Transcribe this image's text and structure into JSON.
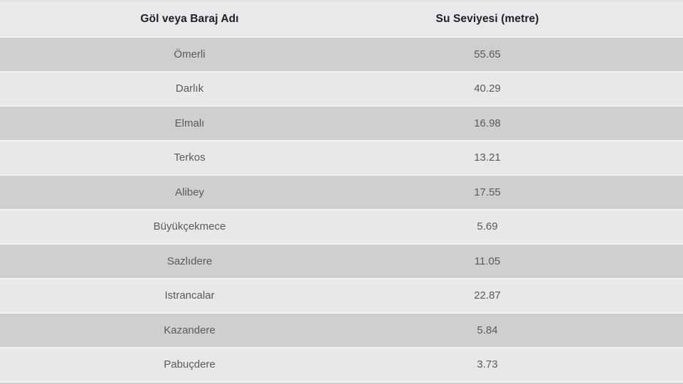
{
  "table": {
    "columns": [
      {
        "label": "Göl veya Baraj Adı"
      },
      {
        "label": "Su Seviyesi (metre)"
      }
    ],
    "rows": [
      {
        "name": "Ömerli",
        "value": "55.65"
      },
      {
        "name": "Darlık",
        "value": "40.29"
      },
      {
        "name": "Elmalı",
        "value": "16.98"
      },
      {
        "name": "Terkos",
        "value": "13.21"
      },
      {
        "name": "Alibey",
        "value": "17.55"
      },
      {
        "name": "Büyükçekmece",
        "value": "5.69"
      },
      {
        "name": "Sazlıdere",
        "value": "11.05"
      },
      {
        "name": "Istrancalar",
        "value": "22.87"
      },
      {
        "name": "Kazandere",
        "value": "5.84"
      },
      {
        "name": "Pabuçdere",
        "value": "3.73"
      }
    ]
  },
  "chart_data": {
    "type": "table",
    "columns": [
      "Göl veya Baraj Adı",
      "Su Seviyesi (metre)"
    ],
    "rows": [
      [
        "Ömerli",
        55.65
      ],
      [
        "Darlık",
        40.29
      ],
      [
        "Elmalı",
        16.98
      ],
      [
        "Terkos",
        13.21
      ],
      [
        "Alibey",
        17.55
      ],
      [
        "Büyükçekmece",
        5.69
      ],
      [
        "Sazlıdere",
        11.05
      ],
      [
        "Istrancalar",
        22.87
      ],
      [
        "Kazandere",
        5.84
      ],
      [
        "Pabuçdere",
        3.73
      ]
    ],
    "layout": {
      "striped": true,
      "header_background": "#eae9e9",
      "stripe_dark": "#d0cfcf",
      "stripe_light": "#e9e8e8",
      "separator_color": "#f3f2f2",
      "header_text_color": "#20202a",
      "body_text_color": "#5a5a5a"
    }
  }
}
